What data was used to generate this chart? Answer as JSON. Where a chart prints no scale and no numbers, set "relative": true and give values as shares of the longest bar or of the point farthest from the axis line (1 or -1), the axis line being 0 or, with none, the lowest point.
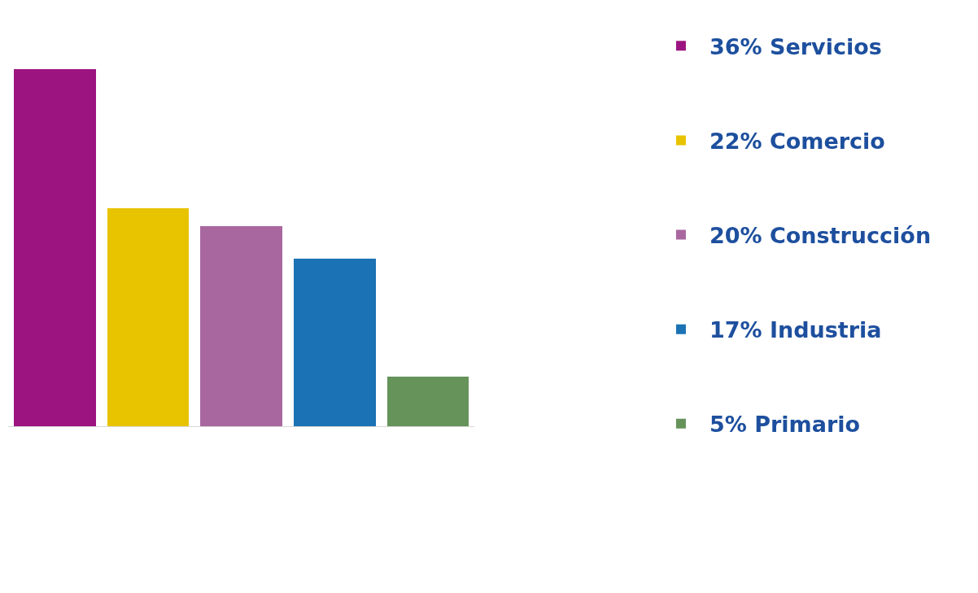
{
  "chart_data": {
    "type": "bar",
    "categories": [
      null,
      null,
      null,
      null,
      null
    ],
    "relative": true,
    "series": [
      {
        "name": "36% Servicios",
        "color": "#9c1480",
        "values": [
          1,
          null,
          null,
          null,
          null
        ]
      },
      {
        "name": "22% Comercio",
        "color": "#e8c300",
        "values": [
          null,
          0.61,
          null,
          null,
          null
        ]
      },
      {
        "name": "20% Construcción",
        "color": "#a9679f",
        "values": [
          null,
          null,
          0.56,
          null,
          null
        ]
      },
      {
        "name": "17% Industria",
        "color": "#1b72b4",
        "values": [
          null,
          null,
          null,
          0.47,
          null
        ]
      },
      {
        "name": "5% Primario",
        "color": "#65935a",
        "values": [
          null,
          null,
          null,
          null,
          0.14
        ]
      }
    ],
    "stacked": true,
    "legend": "right"
  }
}
